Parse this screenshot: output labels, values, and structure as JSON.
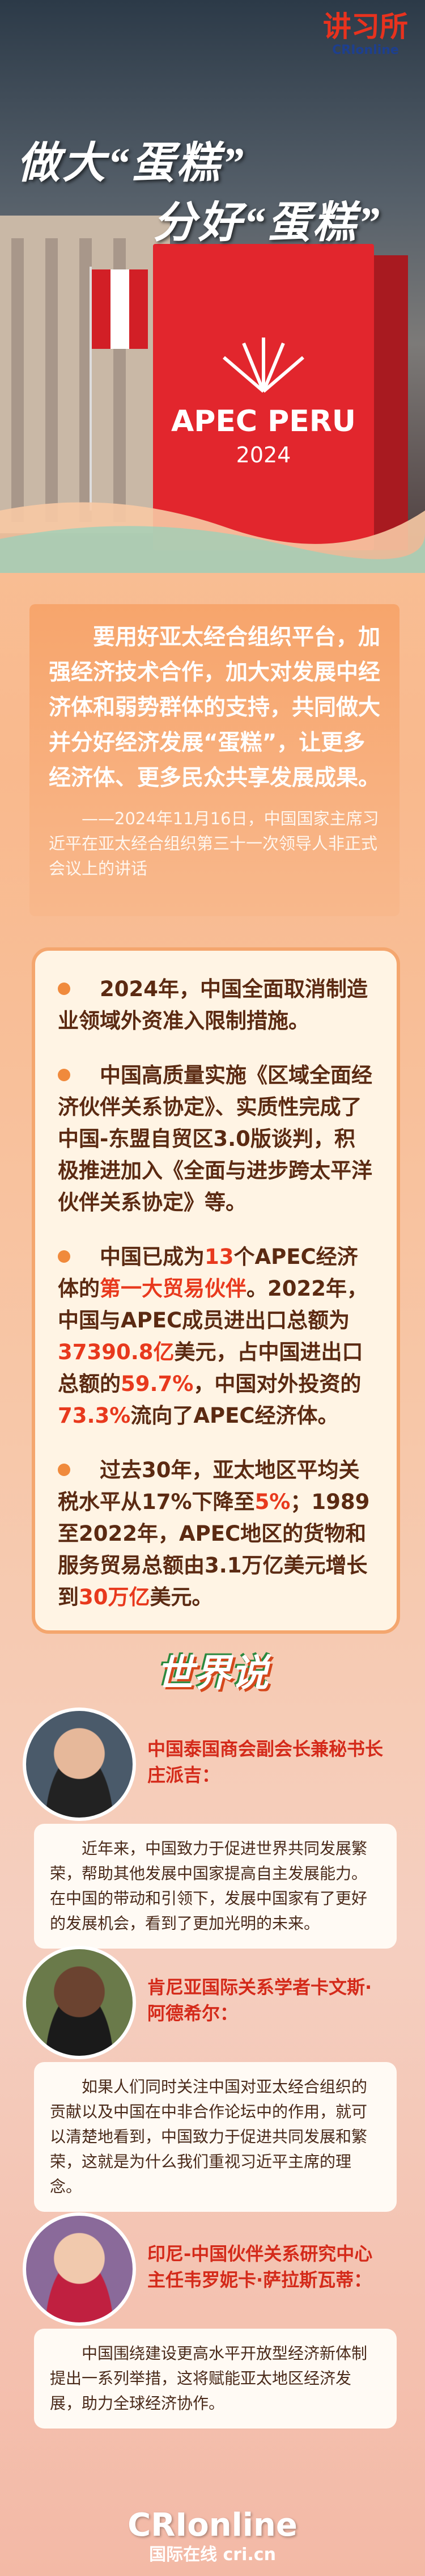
{
  "header": {
    "logo_title": "讲习所",
    "logo_subtitle": "CRIonline",
    "title_line1": "做大“蛋糕”",
    "title_line2": "分好“蛋糕”",
    "sign_text": "APEC PERU",
    "sign_year": "2024"
  },
  "quote": {
    "text": "要用好亚太经合组织平台，加强经济技术合作，加大对发展中经济体和弱势群体的支持，共同做大并分好经济发展“蛋糕”，让更多经济体、更多民众共享发展成果。",
    "source": "——2024年11月16日，中国国家主席习近平在亚太经合组织第三十一次领导人非正式会议上的讲话"
  },
  "facts": [
    {
      "segments": [
        {
          "text": "2024年，中国全面取消制造业领域外资准入限制措施。"
        }
      ]
    },
    {
      "segments": [
        {
          "text": "中国高质量实施《区域全面经济伙伴关系协定》、实质性完成了中国-东盟自贸区3.0版谈判，积极推进加入《全面与进步跨太平洋伙伴关系协定》等。"
        }
      ]
    },
    {
      "segments": [
        {
          "text": "中国已成为"
        },
        {
          "text": "13",
          "color": "#e8391d"
        },
        {
          "text": "个APEC经济体的"
        },
        {
          "text": "第一大贸易伙伴",
          "color": "#e8391d"
        },
        {
          "text": "。2022年，中国与APEC成员进出口总额为"
        },
        {
          "text": "37390.8亿",
          "color": "#e8391d"
        },
        {
          "text": "美元，占中国进出口总额的"
        },
        {
          "text": "59.7%",
          "color": "#e8391d"
        },
        {
          "text": "，中国对外投资的"
        },
        {
          "text": "73.3%",
          "color": "#e8391d"
        },
        {
          "text": "流向了APEC经济体。"
        }
      ]
    },
    {
      "segments": [
        {
          "text": "过去30年，亚太地区平均关税水平从17%下降至"
        },
        {
          "text": "5%",
          "color": "#e8391d"
        },
        {
          "text": "；1989至2022年，APEC地区的货物和服务贸易总额由3.1万亿美元增长到"
        },
        {
          "text": "30万亿",
          "color": "#e8391d"
        },
        {
          "text": "美元。"
        }
      ]
    }
  ],
  "section_title": "世界说",
  "voices": [
    {
      "name": "中国泰国商会副会长兼秘书长庄派吉：",
      "text": "近年来，中国致力于促进世界共同发展繁荣，帮助其他发展中国家提高自主发展能力。在中国的带动和引领下，发展中国家有了更好的发展机会，看到了更加光明的未来。"
    },
    {
      "name": "肯尼亚国际关系学者卡文斯·阿德希尔：",
      "text": "如果人们同时关注中国对亚太经合组织的贡献以及中国在中非合作论坛中的作用，就可以清楚地看到，中国致力于促进共同发展和繁荣，这就是为什么我们重视习近平主席的理念。"
    },
    {
      "name": "印尼-中国伙伴关系研究中心主任韦罗妮卡·萨拉斯瓦蒂：",
      "text": "中国围绕建设更高水平开放型经济新体制提出一系列举措，这将赋能亚太地区经济发展，助力全球经济协作。"
    }
  ],
  "footer": {
    "logo": "CRIonline",
    "tagline": "国际在线 cri.cn"
  }
}
